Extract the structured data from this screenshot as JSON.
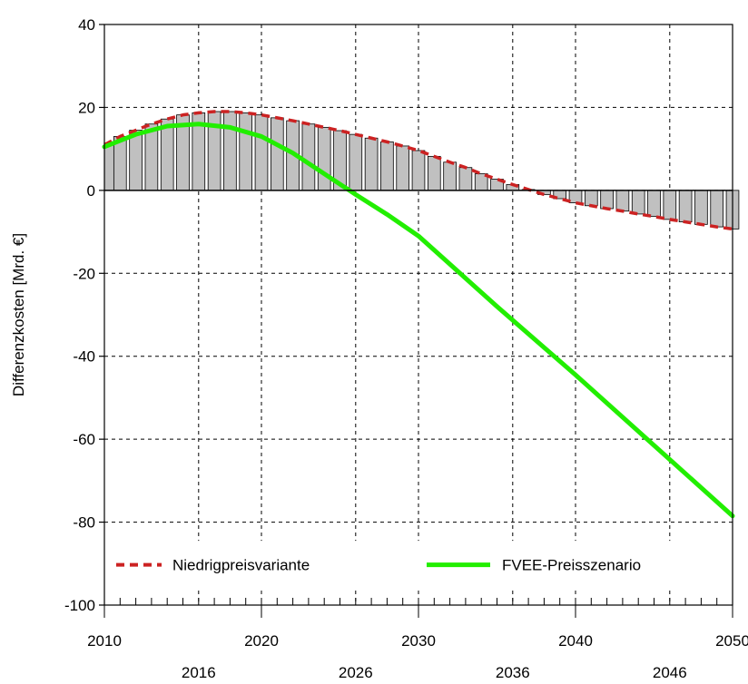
{
  "chart_data": {
    "type": "bar",
    "ylabel": "Differenzkosten [Mrd. €]",
    "ylim": [
      -100,
      40
    ],
    "yticks": [
      40,
      20,
      0,
      -20,
      -40,
      -60,
      -80,
      -100
    ],
    "ytick_labels": [
      "40",
      "20",
      "0",
      "-20",
      "-40",
      "-60",
      "-80",
      "-100"
    ],
    "xlim": [
      2010,
      2050
    ],
    "xticks_top_row": [
      2010,
      2020,
      2030,
      2040,
      2050
    ],
    "xtick_labels_top_row": [
      "2010",
      "2020",
      "2030",
      "2040",
      "2050"
    ],
    "xticks_bottom_row": [
      2016,
      2026,
      2036,
      2046
    ],
    "xtick_labels_bottom_row": [
      "2016",
      "2026",
      "2036",
      "2046"
    ],
    "grid": true,
    "legend_position": "bottom",
    "bar_color": "#c0c0c0",
    "series": [
      {
        "name": "Niedrigpreisvariante",
        "style": "dashed",
        "color": "#cc2222",
        "x": [
          2010,
          2011,
          2012,
          2013,
          2014,
          2015,
          2016,
          2017,
          2018,
          2019,
          2020,
          2021,
          2022,
          2023,
          2024,
          2025,
          2026,
          2027,
          2028,
          2029,
          2030,
          2031,
          2032,
          2033,
          2034,
          2035,
          2036,
          2037,
          2038,
          2039,
          2040,
          2041,
          2042,
          2043,
          2044,
          2045,
          2046,
          2047,
          2048,
          2049,
          2050
        ],
        "values": [
          11,
          13,
          14.5,
          16,
          17.2,
          18.2,
          18.7,
          19,
          19,
          18.7,
          18.2,
          17.5,
          16.8,
          16,
          15.2,
          14.4,
          13.5,
          12.6,
          11.7,
          10.7,
          9.6,
          8.2,
          6.8,
          5.5,
          4,
          2.7,
          1.4,
          0.2,
          -1,
          -2,
          -3,
          -3.7,
          -4.4,
          -5,
          -5.7,
          -6.3,
          -7,
          -7.6,
          -8.2,
          -8.8,
          -9.3
        ]
      },
      {
        "name": "FVEE-Preisszenario",
        "style": "solid",
        "color": "#22ee00",
        "x": [
          2010,
          2012,
          2014,
          2016,
          2018,
          2020,
          2022,
          2024,
          2026,
          2028,
          2030,
          2035,
          2040,
          2045,
          2050
        ],
        "values": [
          10.5,
          13.5,
          15.5,
          16,
          15.2,
          13,
          9,
          4,
          -1,
          -5.8,
          -11,
          -28,
          -44.5,
          -61.5,
          -78.5
        ]
      }
    ]
  }
}
